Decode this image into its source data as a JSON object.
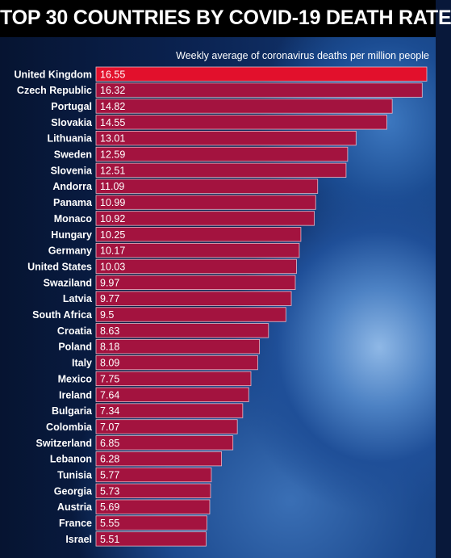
{
  "colors": {
    "bar": "#a3133f",
    "bar_top": "#e2102c",
    "bar_outline": "#e8b9c6",
    "title_bg": "#000000"
  },
  "chart_data": {
    "type": "bar",
    "orientation": "horizontal",
    "title": "TOP 30 COUNTRIES BY COVID-19 DEATH RATE",
    "subtitle": "Weekly average of coronavirus deaths per million people",
    "categories": [
      "United Kingdom",
      "Czech Republic",
      "Portugal",
      "Slovakia",
      "Lithuania",
      "Sweden",
      "Slovenia",
      "Andorra",
      "Panama",
      "Monaco",
      "Hungary",
      "Germany",
      "United States",
      "Swaziland",
      "Latvia",
      "South Africa",
      "Croatia",
      "Poland",
      "Italy",
      "Mexico",
      "Ireland",
      "Bulgaria",
      "Colombia",
      "Switzerland",
      "Lebanon",
      "Tunisia",
      "Georgia",
      "Austria",
      "France",
      "Israel"
    ],
    "values": [
      16.55,
      16.32,
      14.82,
      14.55,
      13.01,
      12.59,
      12.51,
      11.09,
      10.99,
      10.92,
      10.25,
      10.17,
      10.03,
      9.97,
      9.77,
      9.5,
      8.63,
      8.18,
      8.09,
      7.75,
      7.64,
      7.34,
      7.07,
      6.85,
      6.28,
      5.77,
      5.73,
      5.69,
      5.55,
      5.51
    ],
    "value_labels": [
      "16.55",
      "16.32",
      "14.82",
      "14.55",
      "13.01",
      "12.59",
      "12.51",
      "11.09",
      "10.99",
      "10.92",
      "10.25",
      "10.17",
      "10.03",
      "9.97",
      "9.77",
      "9.5",
      "8.63",
      "8.18",
      "8.09",
      "7.75",
      "7.64",
      "7.34",
      "7.07",
      "6.85",
      "6.28",
      "5.77",
      "5.73",
      "5.69",
      "5.55",
      "5.51"
    ],
    "highlight_index": 0,
    "xlim": [
      0,
      16.55
    ],
    "grid": false,
    "legend": "none"
  }
}
